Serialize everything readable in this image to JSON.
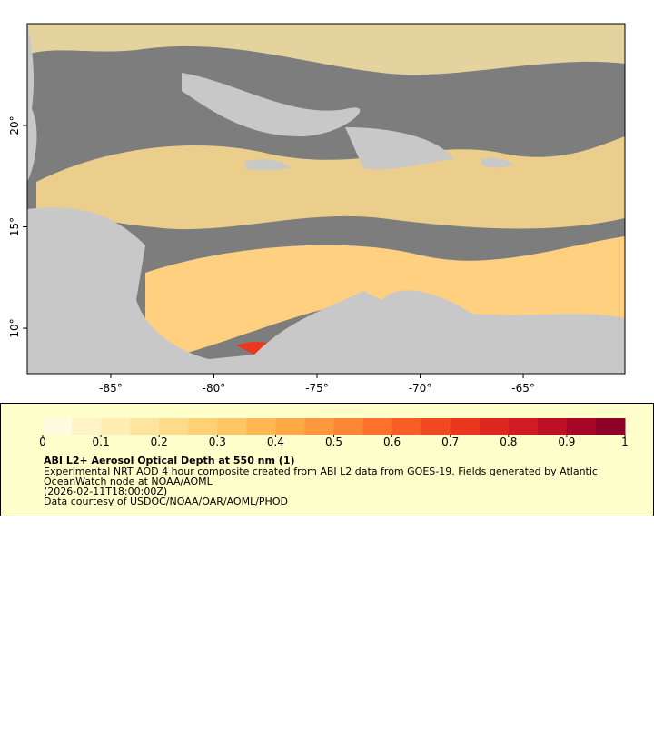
{
  "map": {
    "xlim": [
      -89.05,
      -60.07
    ],
    "ylim": [
      7.76,
      25.02
    ],
    "xticks": [
      {
        "value": -85,
        "label": "-85°"
      },
      {
        "value": -80,
        "label": "-80°"
      },
      {
        "value": -75,
        "label": "-75°"
      },
      {
        "value": -70,
        "label": "-70°"
      },
      {
        "value": -65,
        "label": "-65°"
      }
    ],
    "yticks": [
      {
        "value": 10,
        "label": "10°"
      },
      {
        "value": 15,
        "label": "15°"
      },
      {
        "value": 20,
        "label": "20°"
      }
    ]
  },
  "legend": {
    "title": "ABI L2+ Aerosol Optical Depth at 550 nm (1)",
    "lines": [
      "Experimental NRT AOD 4 hour composite created from ABI L2 data from GOES-19. Fields generated by Atlantic",
      "OceanWatch node at NOAA/AOML",
      "(2026-02-11T18:00:00Z)",
      "Data courtesy of USDOC/NOAA/OAR/AOML/PHOD"
    ],
    "colorbar": {
      "lim": [
        0,
        1
      ],
      "ticks": [
        0,
        0.1,
        0.2,
        0.3,
        0.4,
        0.5,
        0.6,
        0.7,
        0.8,
        0.9,
        1
      ],
      "colors": [
        "#fffbe0",
        "#fff4c8",
        "#ffedb3",
        "#fee49c",
        "#fedb88",
        "#fed176",
        "#fec664",
        "#feb852",
        "#fea946",
        "#fd983d",
        "#fd8634",
        "#fc722d",
        "#f85d27",
        "#f14922",
        "#e9381e",
        "#de281f",
        "#d01b22",
        "#bd1025",
        "#a80627",
        "#8f0027"
      ]
    }
  }
}
